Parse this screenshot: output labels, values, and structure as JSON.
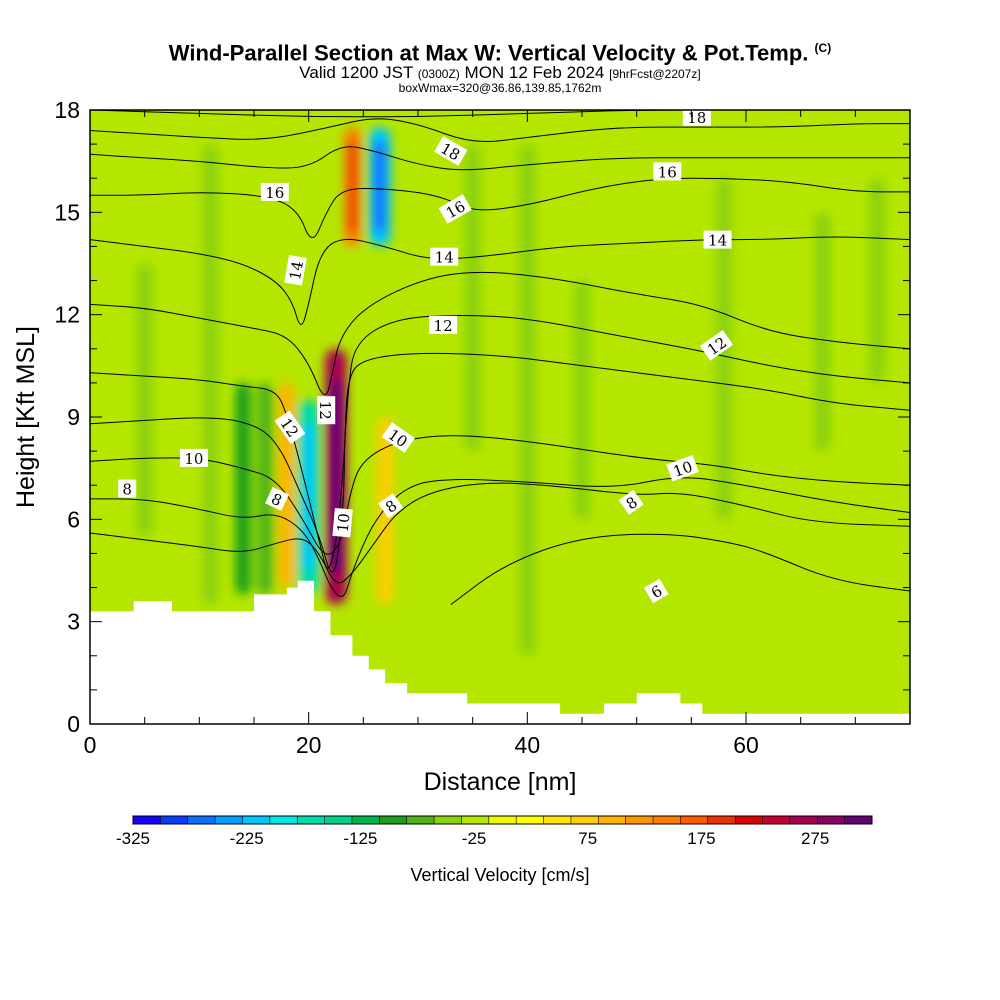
{
  "header": {
    "title": "Wind-Parallel Section at Max W: Vertical Velocity & Pot.Temp.",
    "copyright_mark": "(C)",
    "valid_prefix": "Valid 1200 JST",
    "valid_utc": "(0300Z)",
    "valid_date": "MON 12 Feb 2024",
    "forecast_info": "[9hrFcst@2207z]",
    "box_info": "boxWmax=320@36.86,139.85,1762m"
  },
  "chart_data": {
    "type": "heatmap",
    "title": "Wind-Parallel Section at Max W: Vertical Velocity & Pot.Temp.",
    "xlabel": "Distance [nm]",
    "ylabel": "Height [Kft MSL]",
    "xlim": [
      0,
      75
    ],
    "ylim": [
      0,
      18
    ],
    "x_ticks": [
      "0",
      "20",
      "40",
      "60"
    ],
    "y_ticks": [
      "0",
      "3",
      "6",
      "9",
      "12",
      "15",
      "18"
    ],
    "grid": false,
    "colorbar": {
      "title": "Vertical Velocity [cm/s]",
      "orientation": "horizontal",
      "placement": "bottom",
      "tick_labels": [
        "-325",
        "-225",
        "-125",
        "-25",
        "75",
        "175",
        "275"
      ],
      "levels": [
        -325,
        -300,
        -275,
        -250,
        -225,
        -200,
        -175,
        -150,
        -125,
        -100,
        -75,
        -50,
        -25,
        0,
        25,
        50,
        75,
        100,
        125,
        150,
        175,
        200,
        225,
        250,
        275,
        300,
        325
      ],
      "colors": [
        "#1400ff",
        "#0a3cff",
        "#0a6eff",
        "#00a0ff",
        "#00c8ff",
        "#00e6e6",
        "#00dcaa",
        "#00d28c",
        "#00b450",
        "#1ea01e",
        "#50b414",
        "#8cd20a",
        "#b4e600",
        "#f0fa00",
        "#ffff00",
        "#ffe600",
        "#ffcd00",
        "#ffb400",
        "#ff9600",
        "#ff7d00",
        "#ff5a00",
        "#f03200",
        "#dc0000",
        "#c80032",
        "#aa0050",
        "#8c0064",
        "#640078"
      ]
    },
    "terrain": {
      "x": [
        0,
        4,
        4,
        7.5,
        7.5,
        15,
        15,
        18,
        18,
        19,
        19,
        20.5,
        20.5,
        22,
        22,
        24,
        24,
        25.5,
        25.5,
        27,
        27,
        29,
        29,
        34.5,
        34.5,
        43,
        43,
        47,
        47,
        50,
        50,
        54,
        54,
        56,
        56,
        75
      ],
      "y": [
        3.3,
        3.3,
        3.6,
        3.6,
        3.3,
        3.3,
        3.8,
        3.8,
        4.0,
        4.0,
        4.2,
        4.2,
        3.3,
        3.3,
        2.6,
        2.6,
        2.0,
        2.0,
        1.6,
        1.6,
        1.2,
        1.2,
        0.9,
        0.9,
        0.6,
        0.6,
        0.3,
        0.3,
        0.6,
        0.6,
        0.9,
        0.9,
        0.6,
        0.6,
        0.3,
        0.3
      ]
    },
    "velocity_field": [
      {
        "x": 5,
        "y_range": [
          5.5,
          13.5
        ],
        "value": -50
      },
      {
        "x": 11,
        "y_range": [
          3.5,
          17
        ],
        "value": -50
      },
      {
        "x": 14,
        "y_range": [
          3.8,
          10
        ],
        "value": -100
      },
      {
        "x": 16,
        "y_range": [
          3.8,
          10
        ],
        "value": -75
      },
      {
        "x": 18,
        "y_range": [
          4.0,
          10
        ],
        "value": 100
      },
      {
        "x": 20,
        "y_range": [
          3.8,
          9.5
        ],
        "value": -175
      },
      {
        "x": 22.5,
        "y_range": [
          3.5,
          11
        ],
        "value": 275
      },
      {
        "x": 27,
        "y_range": [
          3.5,
          9
        ],
        "value": 75
      },
      {
        "x": 35,
        "y_range": [
          8,
          17
        ],
        "value": -50
      },
      {
        "x": 40,
        "y_range": [
          2,
          17
        ],
        "value": -50
      },
      {
        "x": 45,
        "y_range": [
          6,
          13
        ],
        "value": -50
      },
      {
        "x": 58,
        "y_range": [
          6,
          16
        ],
        "value": -50
      },
      {
        "x": 67,
        "y_range": [
          8,
          15
        ],
        "value": -50
      },
      {
        "x": 72,
        "y_range": [
          10,
          16
        ],
        "value": -50
      },
      {
        "x": 24,
        "y_range": [
          14,
          17.5
        ],
        "value": 150
      },
      {
        "x": 26.5,
        "y_range": [
          14,
          17.5
        ],
        "value": -225
      }
    ],
    "contours": [
      {
        "label": "6",
        "points": [
          [
            33,
            3.5
          ],
          [
            38,
            4.7
          ],
          [
            45,
            5.5
          ],
          [
            53,
            5.6
          ],
          [
            59,
            5.3
          ],
          [
            62,
            5.0
          ],
          [
            68,
            4.2
          ],
          [
            75,
            3.9
          ]
        ]
      },
      {
        "label": "8",
        "points": [
          [
            0,
            5.6
          ],
          [
            5,
            5.4
          ],
          [
            10,
            5.2
          ],
          [
            14,
            5.0
          ],
          [
            17,
            5.3
          ],
          [
            19.5,
            5.5
          ],
          [
            21,
            5.0
          ],
          [
            22.5,
            4.0
          ],
          [
            24,
            4.4
          ],
          [
            26,
            5.3
          ],
          [
            28,
            6.2
          ],
          [
            31,
            6.8
          ],
          [
            36,
            7.1
          ],
          [
            42,
            7.0
          ],
          [
            50,
            6.7
          ],
          [
            54,
            6.8
          ],
          [
            60,
            6.4
          ],
          [
            66,
            5.9
          ],
          [
            75,
            5.8
          ]
        ]
      },
      {
        "label": "8",
        "points": [
          [
            0,
            6.6
          ],
          [
            5,
            6.6
          ],
          [
            10,
            6.3
          ],
          [
            14,
            6.0
          ],
          [
            17,
            6.2
          ],
          [
            19.5,
            5.7
          ],
          [
            21,
            4.8
          ],
          [
            22,
            4.0
          ],
          [
            23.2,
            3.6
          ],
          [
            24,
            4.5
          ],
          [
            26,
            6.0
          ],
          [
            29,
            7.0
          ],
          [
            33,
            7.2
          ],
          [
            40,
            7.1
          ],
          [
            48,
            6.9
          ],
          [
            54,
            7.3
          ],
          [
            60,
            7.0
          ],
          [
            68,
            6.5
          ],
          [
            75,
            6.2
          ]
        ]
      },
      {
        "label": "10",
        "points": [
          [
            0,
            7.7
          ],
          [
            5,
            7.8
          ],
          [
            10,
            7.8
          ],
          [
            14,
            7.5
          ],
          [
            17,
            7.2
          ],
          [
            19.5,
            6.0
          ],
          [
            21.5,
            4.8
          ],
          [
            23,
            5.3
          ],
          [
            23.8,
            6.8
          ],
          [
            24.8,
            7.7
          ],
          [
            28,
            8.3
          ],
          [
            33,
            8.5
          ],
          [
            40,
            8.3
          ],
          [
            50,
            7.8
          ],
          [
            57,
            7.6
          ],
          [
            62,
            7.3
          ],
          [
            68,
            7.1
          ],
          [
            75,
            7.0
          ]
        ]
      },
      {
        "label": "12",
        "points": [
          [
            0,
            8.8
          ],
          [
            5,
            8.9
          ],
          [
            10,
            9.0
          ],
          [
            14,
            8.9
          ],
          [
            17,
            8.4
          ],
          [
            19.5,
            6.6
          ],
          [
            21,
            5.5
          ],
          [
            22.3,
            4.0
          ],
          [
            23.2,
            6.3
          ],
          [
            23.3,
            8.5
          ],
          [
            23.6,
            10.2
          ],
          [
            25,
            10.7
          ],
          [
            30,
            10.9
          ],
          [
            38,
            10.8
          ],
          [
            45,
            10.5
          ],
          [
            55,
            10.1
          ],
          [
            62,
            9.8
          ],
          [
            68,
            9.4
          ],
          [
            75,
            9.2
          ]
        ]
      },
      {
        "label": "12",
        "points": [
          [
            0,
            10.3
          ],
          [
            5,
            10.2
          ],
          [
            10,
            10.1
          ],
          [
            14,
            9.9
          ],
          [
            17,
            9.8
          ],
          [
            18,
            9.1
          ],
          [
            19.5,
            7.3
          ],
          [
            21,
            5.3
          ],
          [
            21.8,
            4.3
          ],
          [
            22.6,
            5.5
          ],
          [
            23.1,
            7.2
          ],
          [
            23.6,
            9.8
          ],
          [
            24.2,
            11.2
          ],
          [
            28,
            11.9
          ],
          [
            34,
            12.0
          ],
          [
            40,
            11.9
          ],
          [
            48,
            11.4
          ],
          [
            55,
            11.0
          ],
          [
            62,
            10.5
          ],
          [
            68,
            10.2
          ],
          [
            75,
            10.0
          ]
        ]
      },
      {
        "label": "14",
        "points": [
          [
            0,
            12.3
          ],
          [
            5,
            12.2
          ],
          [
            10,
            11.9
          ],
          [
            15,
            11.6
          ],
          [
            18,
            11.4
          ],
          [
            20,
            10.6
          ],
          [
            21.5,
            9.4
          ],
          [
            22.2,
            10.3
          ],
          [
            22.8,
            11.3
          ],
          [
            25,
            12.2
          ],
          [
            30,
            13.0
          ],
          [
            35,
            13.3
          ],
          [
            42,
            13.1
          ],
          [
            50,
            12.6
          ],
          [
            56,
            12.3
          ],
          [
            62,
            11.5
          ],
          [
            68,
            11.2
          ],
          [
            75,
            11.0
          ]
        ]
      },
      {
        "label": "14",
        "points": [
          [
            0,
            14.2
          ],
          [
            5,
            14.0
          ],
          [
            10,
            13.8
          ],
          [
            14,
            13.5
          ],
          [
            17,
            13.0
          ],
          [
            18.5,
            12.4
          ],
          [
            19.3,
            11.5
          ],
          [
            20,
            12.3
          ],
          [
            21,
            13.8
          ],
          [
            23,
            14.3
          ],
          [
            27,
            14.0
          ],
          [
            31,
            13.6
          ],
          [
            36,
            13.7
          ],
          [
            43,
            14.0
          ],
          [
            50,
            14.1
          ],
          [
            56,
            14.2
          ],
          [
            62,
            14.2
          ],
          [
            68,
            14.3
          ],
          [
            75,
            14.2
          ]
        ]
      },
      {
        "label": "16",
        "points": [
          [
            0,
            15.5
          ],
          [
            5,
            15.5
          ],
          [
            10,
            15.6
          ],
          [
            16,
            15.5
          ],
          [
            19,
            15.1
          ],
          [
            20.3,
            14.0
          ],
          [
            21.6,
            15.0
          ],
          [
            23,
            15.7
          ],
          [
            27,
            15.7
          ],
          [
            32,
            15.5
          ],
          [
            35,
            15.0
          ],
          [
            40,
            15.2
          ],
          [
            46,
            15.7
          ],
          [
            52,
            16.0
          ],
          [
            58,
            16.0
          ],
          [
            64,
            15.9
          ],
          [
            70,
            15.6
          ],
          [
            75,
            15.6
          ]
        ]
      },
      {
        "label": "16",
        "points": [
          [
            0,
            16.7
          ],
          [
            5,
            16.6
          ],
          [
            10,
            16.5
          ],
          [
            16,
            16.3
          ],
          [
            20,
            16.3
          ],
          [
            23,
            17.0
          ],
          [
            26,
            16.8
          ],
          [
            30,
            16.4
          ],
          [
            34,
            16.2
          ],
          [
            40,
            16.4
          ],
          [
            48,
            16.6
          ],
          [
            56,
            16.6
          ],
          [
            64,
            16.6
          ],
          [
            70,
            16.6
          ],
          [
            75,
            16.6
          ]
        ]
      },
      {
        "label": "18",
        "points": [
          [
            0,
            17.4
          ],
          [
            5,
            17.3
          ],
          [
            10,
            17.2
          ],
          [
            16,
            17.1
          ],
          [
            22,
            17.5
          ],
          [
            26,
            17.8
          ],
          [
            30,
            17.6
          ],
          [
            35,
            17.0
          ],
          [
            40,
            17.2
          ],
          [
            48,
            17.5
          ],
          [
            56,
            17.5
          ],
          [
            64,
            17.5
          ],
          [
            70,
            17.6
          ],
          [
            75,
            17.6
          ]
        ]
      },
      {
        "label": "18",
        "points": [
          [
            0,
            18.0
          ],
          [
            10,
            17.9
          ],
          [
            20,
            17.8
          ],
          [
            30,
            17.8
          ],
          [
            40,
            17.9
          ],
          [
            50,
            18.0
          ],
          [
            60,
            18.0
          ],
          [
            68,
            18.0
          ],
          [
            75,
            18.0
          ]
        ]
      }
    ],
    "contour_labels": [
      {
        "text": "8",
        "x": 3.4,
        "y": 6.9,
        "angle": 0
      },
      {
        "text": "10",
        "x": 9.5,
        "y": 7.8,
        "angle": 0
      },
      {
        "text": "8",
        "x": 17.1,
        "y": 6.6,
        "angle": 25
      },
      {
        "text": "12",
        "x": 18.3,
        "y": 8.7,
        "angle": 55
      },
      {
        "text": "12",
        "x": 21.6,
        "y": 9.2,
        "angle": 90
      },
      {
        "text": "10",
        "x": 23.1,
        "y": 5.9,
        "angle": -85
      },
      {
        "text": "8",
        "x": 27.5,
        "y": 6.4,
        "angle": -35
      },
      {
        "text": "10",
        "x": 28.2,
        "y": 8.4,
        "angle": 35
      },
      {
        "text": "6",
        "x": 51.8,
        "y": 3.9,
        "angle": -30
      },
      {
        "text": "8",
        "x": 49.5,
        "y": 6.5,
        "angle": -35
      },
      {
        "text": "10",
        "x": 54.2,
        "y": 7.5,
        "angle": -20
      },
      {
        "text": "12",
        "x": 57.3,
        "y": 11.1,
        "angle": -35
      },
      {
        "text": "12",
        "x": 32.3,
        "y": 11.7,
        "angle": 0
      },
      {
        "text": "14",
        "x": 32.4,
        "y": 13.7,
        "angle": 0
      },
      {
        "text": "14",
        "x": 18.8,
        "y": 13.3,
        "angle": -80
      },
      {
        "text": "14",
        "x": 57.4,
        "y": 14.2,
        "angle": 0
      },
      {
        "text": "16",
        "x": 16.9,
        "y": 15.6,
        "angle": 0
      },
      {
        "text": "16",
        "x": 33.4,
        "y": 15.1,
        "angle": -30
      },
      {
        "text": "16",
        "x": 52.8,
        "y": 16.2,
        "angle": 0
      },
      {
        "text": "18",
        "x": 33.0,
        "y": 16.8,
        "angle": 30
      },
      {
        "text": "18",
        "x": 55.5,
        "y": 17.8,
        "angle": 0
      }
    ]
  }
}
